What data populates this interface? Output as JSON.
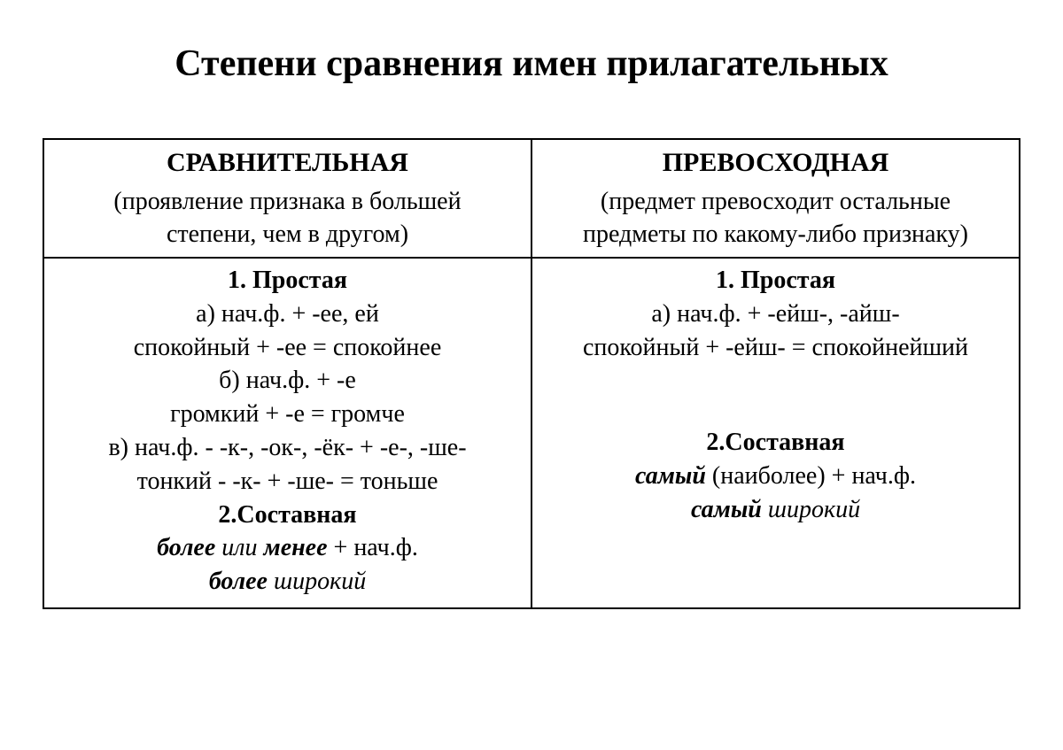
{
  "title": "Степени сравнения имен прилагательных",
  "col1": {
    "header": "СРАВНИТЕЛЬНАЯ",
    "desc1": "(проявление признака в большей",
    "desc2": "степени, чем в другом)",
    "s1_hdr": "1.   Простая",
    "l1": "а) нач.ф. + -ее, ей",
    "l2": "спокойный + -ее = спокойнее",
    "l3": "б) нач.ф. + -е",
    "l4": "громкий + -е = громче",
    "l5": "в) нач.ф. - -к-, -ок-, -ёк- + -е-, -ше-",
    "l6": "тонкий - -к- + -ше- = тоньше",
    "s2_hdr": "2.Составная",
    "c1a": "более",
    "c1b": " или ",
    "c1c": "менее",
    "c1d": "  + нач.ф.",
    "c2a": "более",
    "c2b": " широкий"
  },
  "col2": {
    "header": "ПРЕВОСХОДНАЯ",
    "desc1": "(предмет превосходит остальные",
    "desc2": "предметы по какому-либо признаку)",
    "s1_hdr": "1.   Простая",
    "l1": "а) нач.ф. + -ейш-, -айш-",
    "l2": "спокойный + -ейш- = спокойнейший",
    "s2_hdr": "2.Составная",
    "c1a": "самый",
    "c1b": " (наиболее) + нач.ф.",
    "c2a": "самый",
    "c2b": " широкий"
  }
}
